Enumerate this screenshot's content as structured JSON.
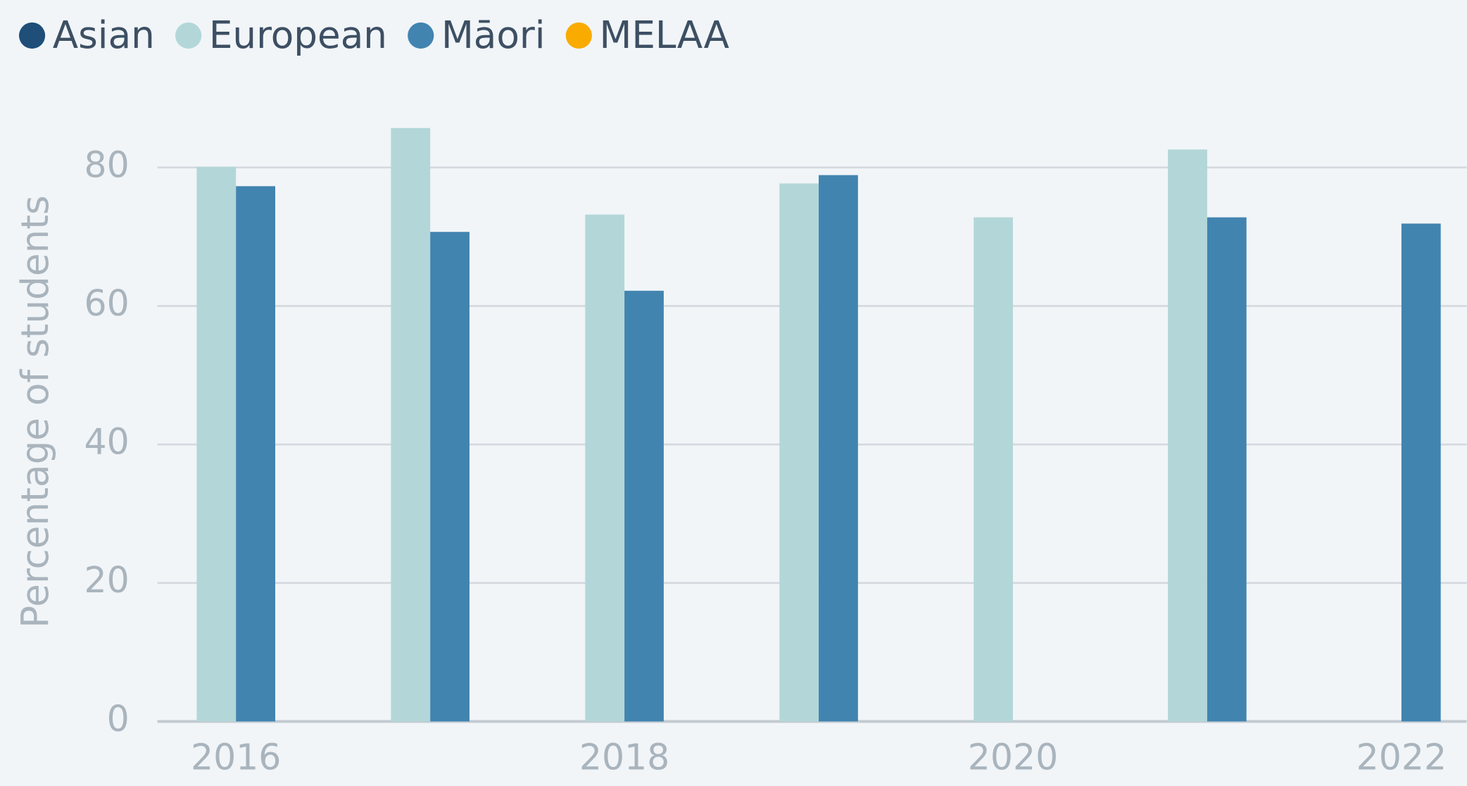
{
  "chart_data": {
    "type": "bar",
    "y_label": "Percentage of students",
    "categories": [
      "2016",
      null,
      "2018",
      null,
      "2020",
      null,
      "2022"
    ],
    "series": [
      {
        "name": "Asian",
        "color": "#1f4e79",
        "values": [
          null,
          null,
          null,
          null,
          null,
          null,
          null
        ]
      },
      {
        "name": "European",
        "color": "#b3d7d8",
        "values": [
          80.1,
          85.7,
          73.2,
          77.7,
          72.8,
          82.6,
          null
        ]
      },
      {
        "name": "Māori",
        "color": "#4284b0",
        "values": [
          77.3,
          70.7,
          62.2,
          78.9,
          null,
          72.8,
          71.9
        ]
      },
      {
        "name": "MELAA",
        "color": "#f9ab00",
        "values": [
          null,
          null,
          null,
          null,
          null,
          null,
          null
        ]
      }
    ],
    "ylim": [
      0,
      90
    ],
    "yticks": [
      0,
      20,
      40,
      60,
      80
    ],
    "grid": true,
    "legend": "top-left"
  }
}
